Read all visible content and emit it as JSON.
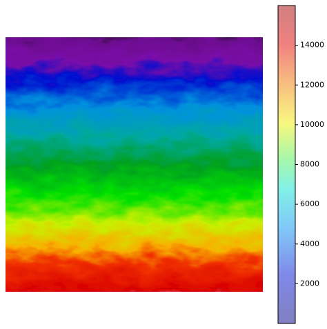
{
  "chart_data": {
    "type": "image",
    "colorbar": {
      "clim": [
        0,
        16000
      ],
      "ticks": [
        2000,
        4000,
        6000,
        8000,
        10000,
        12000,
        14000
      ]
    }
  }
}
